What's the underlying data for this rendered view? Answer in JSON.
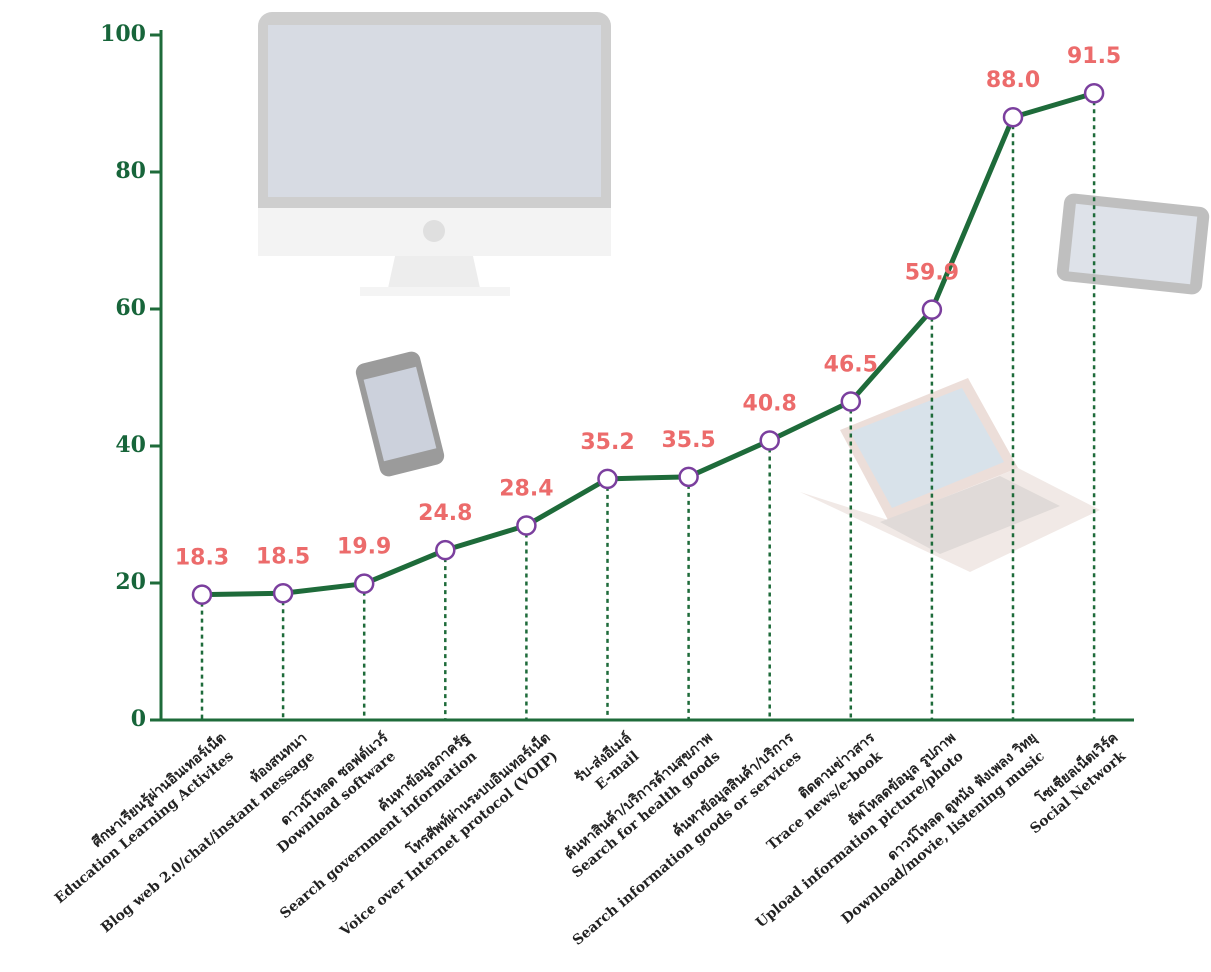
{
  "chart_data": {
    "type": "line",
    "categories": [
      [
        "ศึกษาเรียนรู้ผ่านอินเทอร์เน็ต",
        "Education Learning Activites"
      ],
      [
        "ห้องสนทนา",
        "Blog web 2.0/chat/instant message"
      ],
      [
        "ดาวน์โหลด ซอฟต์แวร์",
        "Download software"
      ],
      [
        "ค้นหาข้อมูลภาครัฐ",
        "Search government information"
      ],
      [
        "โทรศัพท์ผ่านระบบอินเทอร์เน็ต",
        "Voice over Internet protocol (VOIP)"
      ],
      [
        "รับ-ส่งอีเมล์",
        "E-mail"
      ],
      [
        "ค้นหาสินค้า/บริการด้านสุขภาพ",
        "Search for health goods"
      ],
      [
        "ค้นหาข้อมูลสินค้า/บริการ",
        "Search information goods or services"
      ],
      [
        "ติดตามข่าวสาร",
        "Trace news/e-book"
      ],
      [
        "อัพโหลดข้อมูล รูปภาพ",
        "Upload information picture/photo"
      ],
      [
        "ดาวน์โหลด ดูหนัง ฟังเพลง วิทยุ",
        "Download/movie, listening music"
      ],
      [
        "โซเชียลเน็ตเวิร์ค",
        "Social Network"
      ]
    ],
    "values": [
      18.3,
      18.5,
      19.9,
      24.8,
      28.4,
      35.2,
      35.5,
      40.8,
      46.5,
      59.9,
      88.0,
      91.5
    ],
    "value_labels": [
      "18.3",
      "18.5",
      "19.9",
      "24.8",
      "28.4",
      "35.2",
      "35.5",
      "40.8",
      "46.5",
      "59.9",
      "88.0",
      "91.5"
    ],
    "color": "#1e6b3a",
    "marker_color": "#7b3f9e",
    "label_color": "#ec6b6b",
    "ylim": [
      0,
      100
    ],
    "yticks": [
      0,
      20,
      40,
      60,
      80,
      100
    ]
  }
}
